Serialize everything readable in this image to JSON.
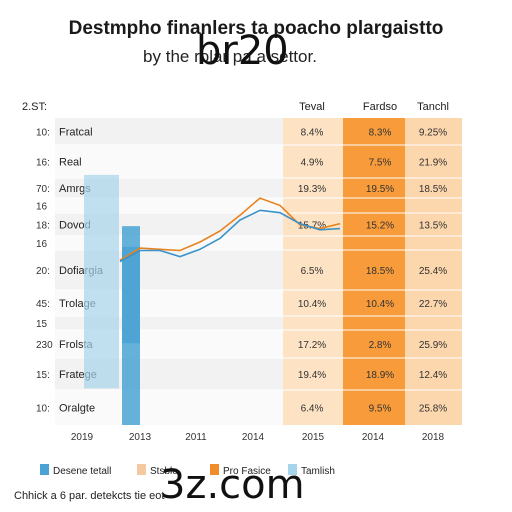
{
  "chart_data": {
    "type": "table",
    "title": "Destmpho finanlers ta poacho plargaistto",
    "subtitle": "by the rolar pa a settor.",
    "corner_label": "2.ST:",
    "columns": [
      "Teval",
      "Fardso",
      "Tanchl"
    ],
    "rows": [
      {
        "tick": "10:",
        "label": "Fratcal",
        "values": [
          "8.4%",
          "8.3%",
          "9.25%"
        ]
      },
      {
        "tick": "16:",
        "label": "Real",
        "values": [
          "4.9%",
          "7.5%",
          "21.9%"
        ]
      },
      {
        "tick": "70:",
        "label": "Amrgs",
        "values": [
          "19.3%",
          "19.5%",
          "18.5%"
        ]
      },
      {
        "tick": "16",
        "label": "",
        "values": [
          "",
          "",
          ""
        ]
      },
      {
        "tick": "18:",
        "label": "Dovod",
        "values": [
          "15.7%",
          "15.2%",
          "13.5%"
        ]
      },
      {
        "tick": "16",
        "label": "",
        "values": [
          "",
          "",
          ""
        ]
      },
      {
        "tick": "20:",
        "label": "Dofiargia",
        "values": [
          "6.5%",
          "18.5%",
          "25.4%"
        ]
      },
      {
        "tick": "45:",
        "label": "Trolage",
        "values": [
          "10.4%",
          "10.4%",
          "22.7%"
        ]
      },
      {
        "tick": "15",
        "label": "",
        "values": [
          "",
          "",
          ""
        ]
      },
      {
        "tick": "230",
        "label": "Frolsta",
        "values": [
          "17.2%",
          "2.8%",
          "25.9%"
        ]
      },
      {
        "tick": "15:",
        "label": "Fratege",
        "values": [
          "19.4%",
          "18.9%",
          "12.4%"
        ]
      },
      {
        "tick": "10:",
        "label": "Oralgte",
        "values": [
          "6.4%",
          "9.5%",
          "25.8%"
        ]
      }
    ],
    "xticks": [
      "2019",
      "2013",
      "2011",
      "2014",
      "2015",
      "2014",
      "2018"
    ],
    "bars": [
      {
        "x": "2013",
        "bottom": 3.0,
        "top": 20.5
      },
      {
        "x": "2013",
        "bottom": 6.7,
        "top": 16.3
      },
      {
        "x": "2013",
        "bottom": 0,
        "top": 14.6
      }
    ],
    "series": [
      {
        "color": "#e8821e",
        "y": [
          13.5,
          14.5,
          14.4,
          14.3,
          15.0,
          15.9,
          17.2,
          18.6,
          18.0,
          16.4,
          16.1,
          16.5
        ]
      },
      {
        "color": "#3a93c8",
        "y": [
          13.4,
          14.3,
          14.3,
          13.8,
          14.4,
          15.3,
          16.8,
          17.6,
          17.4,
          16.5,
          16.0,
          16.1
        ]
      }
    ],
    "legend": [
      {
        "label": "Desene tetall",
        "color": "#4aa3d4"
      },
      {
        "label": "Stsble",
        "color": "#f5c9a0"
      },
      {
        "label": "Pro Fasice",
        "color": "#f08c2c"
      },
      {
        "label": "Tamlish",
        "color": "#a6d4ea"
      }
    ],
    "colors": {
      "band_light": "#fde2c4",
      "band_mid": "#f79b3b",
      "band_right": "#fcd6ac",
      "row_shade": "#f2f2f2"
    }
  },
  "watermark": {
    "top": "br20",
    "bottom": "3z.com"
  },
  "footer": "Chhick a 6 par. detekcts tie eot"
}
